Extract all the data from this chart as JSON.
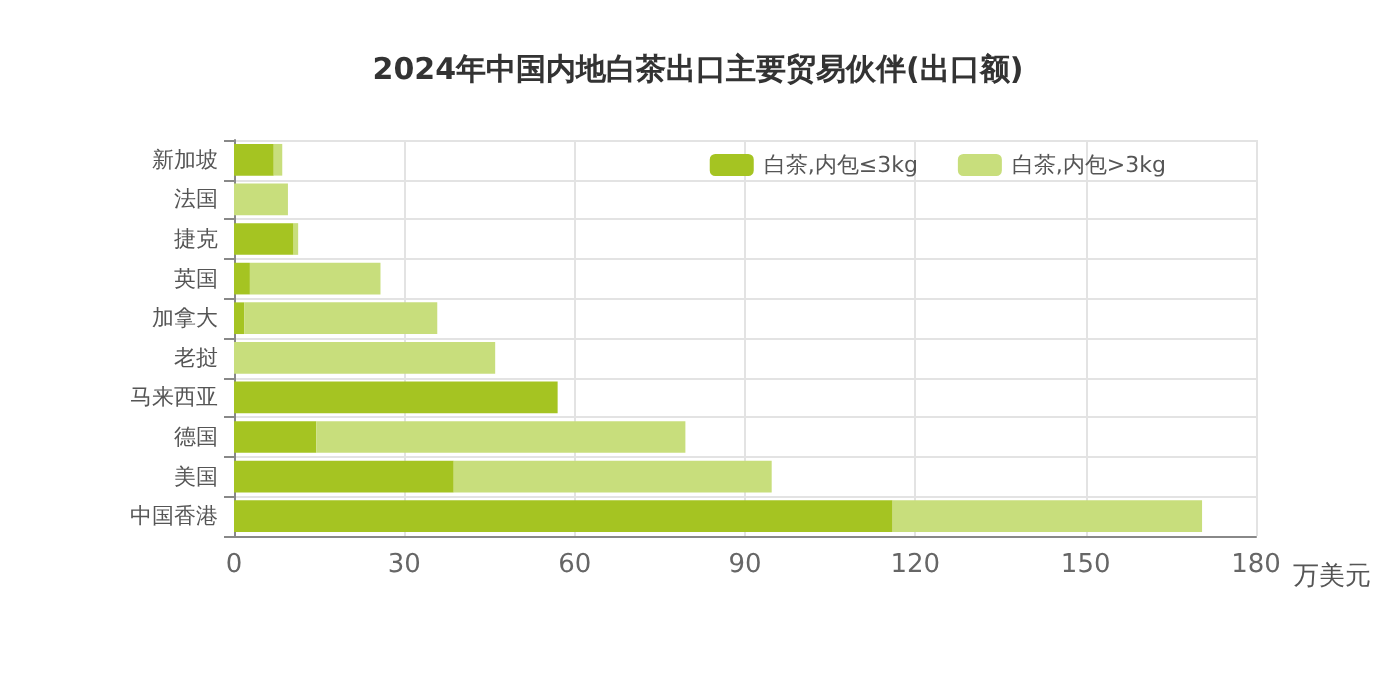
{
  "chart_data": {
    "type": "bar",
    "orientation": "horizontal",
    "stacked": true,
    "title": "2024年中国内地白茶出口主要贸易伙伴(出口额)",
    "xlabel": "万美元",
    "categories": [
      "新加坡",
      "法国",
      "捷克",
      "英国",
      "加拿大",
      "老挝",
      "马来西亚",
      "德国",
      "美国",
      "中国香港"
    ],
    "series": [
      {
        "name": "白茶,内包≤3kg",
        "color": "#a5c422",
        "values": [
          7,
          null,
          10.5,
          2.8,
          1.8,
          null,
          57,
          14.5,
          38.7,
          116
        ]
      },
      {
        "name": "白茶,内包>3kg",
        "color": "#c8de7c",
        "values": [
          1.5,
          9.5,
          0.8,
          23,
          34,
          46,
          null,
          65,
          56,
          54.5
        ]
      }
    ],
    "xlim": [
      0,
      180
    ],
    "xticks": [
      0,
      30,
      60,
      90,
      120,
      150,
      180
    ],
    "grid": true,
    "legend": "top right"
  }
}
